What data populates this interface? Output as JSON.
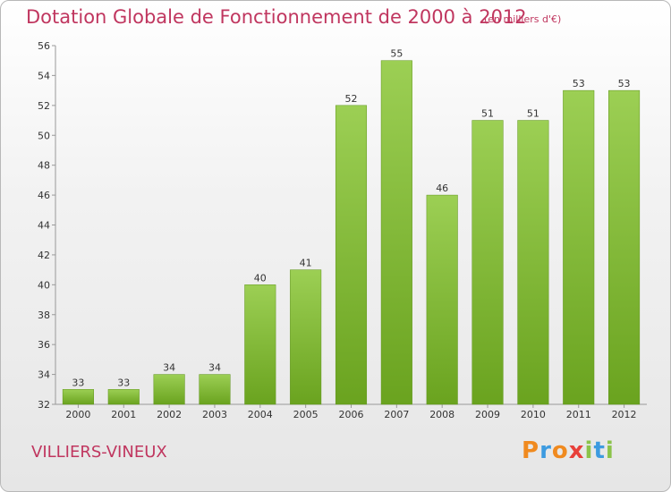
{
  "header": {
    "title": "Dotation Globale de Fonctionnement de 2000 à 2012",
    "unit": "(en milliers d'€)"
  },
  "footer": {
    "town": "VILLIERS-VINEUX",
    "logo": [
      "P",
      "r",
      "o",
      "x",
      "i",
      "t",
      "i"
    ]
  },
  "colors": {
    "bar_light": "#9ccf54",
    "bar_dark": "#6aa31f",
    "title": "#c0365f"
  },
  "chart_data": {
    "type": "bar",
    "title": "Dotation Globale de Fonctionnement de 2000 à 2012",
    "subtitle": "(en milliers d'€)",
    "xlabel": "",
    "ylabel": "",
    "categories": [
      "2000",
      "2001",
      "2002",
      "2003",
      "2004",
      "2005",
      "2006",
      "2007",
      "2008",
      "2009",
      "2010",
      "2011",
      "2012"
    ],
    "values": [
      33,
      33,
      34,
      34,
      40,
      41,
      52,
      55,
      46,
      51,
      51,
      53,
      53
    ],
    "ylim": [
      32,
      56
    ],
    "yticks": [
      32,
      34,
      36,
      38,
      40,
      42,
      44,
      46,
      48,
      50,
      52,
      54,
      56
    ],
    "grid": false,
    "legend": "none"
  }
}
